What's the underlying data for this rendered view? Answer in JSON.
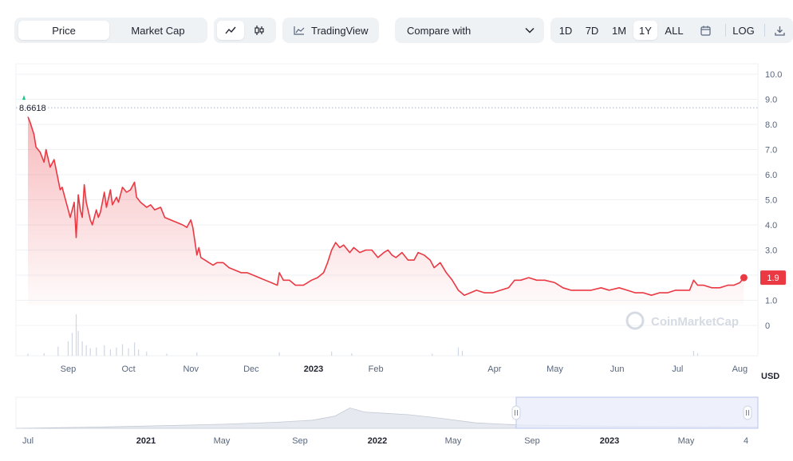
{
  "toolbar": {
    "tabs": [
      "Price",
      "Market Cap"
    ],
    "active_tab": "Price",
    "chart_icons": [
      "line-chart-icon",
      "candlestick-icon"
    ],
    "tradingview_label": "TradingView",
    "compare_label": "Compare with",
    "ranges": [
      "1D",
      "7D",
      "1M",
      "1Y",
      "ALL"
    ],
    "active_range": "1Y",
    "log_label": "LOG"
  },
  "currency_label": "USD",
  "watermark": "CoinMarketCap",
  "colors": {
    "line": "#ea3943",
    "fill_top": "#ea3943",
    "grid": "#eff2f5",
    "nav_selection": "#e8ecfb",
    "positive": "#16c784"
  },
  "chart_data": {
    "type": "area",
    "y_ticks": [
      "0",
      "1.0",
      "2.0",
      "3.0",
      "4.0",
      "5.0",
      "6.0",
      "7.0",
      "8.0",
      "9.0",
      "10.0"
    ],
    "ylim": [
      0,
      10.5
    ],
    "x_ticks": [
      "Sep",
      "Oct",
      "Nov",
      "Dec",
      "2023",
      "Feb",
      "Apr",
      "May",
      "Jun",
      "Jul",
      "Aug"
    ],
    "bold_x_ticks": [
      "2023"
    ],
    "x_tick_dates": [
      "2022-09-01",
      "2022-10-01",
      "2022-11-01",
      "2022-12-01",
      "2023-01-01",
      "2023-02-01",
      "2023-04-01",
      "2023-05-01",
      "2023-06-01",
      "2023-07-01",
      "2023-08-01"
    ],
    "high_label": "8.6618",
    "last_label": "1.9",
    "series": [
      {
        "points": [
          [
            "2022-08-12",
            8.3
          ],
          [
            "2022-08-13",
            8.1
          ],
          [
            "2022-08-15",
            7.6
          ],
          [
            "2022-08-16",
            7.1
          ],
          [
            "2022-08-18",
            6.9
          ],
          [
            "2022-08-20",
            6.5
          ],
          [
            "2022-08-21",
            7.0
          ],
          [
            "2022-08-23",
            6.3
          ],
          [
            "2022-08-25",
            6.6
          ],
          [
            "2022-08-27",
            5.8
          ],
          [
            "2022-08-28",
            5.4
          ],
          [
            "2022-08-29",
            5.5
          ],
          [
            "2022-09-01",
            4.6
          ],
          [
            "2022-09-02",
            4.3
          ],
          [
            "2022-09-04",
            4.9
          ],
          [
            "2022-09-05",
            3.5
          ],
          [
            "2022-09-06",
            5.2
          ],
          [
            "2022-09-07",
            4.6
          ],
          [
            "2022-09-08",
            4.3
          ],
          [
            "2022-09-09",
            5.6
          ],
          [
            "2022-09-10",
            4.9
          ],
          [
            "2022-09-12",
            4.2
          ],
          [
            "2022-09-13",
            4.0
          ],
          [
            "2022-09-15",
            4.6
          ],
          [
            "2022-09-16",
            4.3
          ],
          [
            "2022-09-17",
            4.5
          ],
          [
            "2022-09-19",
            5.3
          ],
          [
            "2022-09-20",
            4.7
          ],
          [
            "2022-09-22",
            5.4
          ],
          [
            "2022-09-23",
            4.8
          ],
          [
            "2022-09-25",
            5.1
          ],
          [
            "2022-09-26",
            4.9
          ],
          [
            "2022-09-28",
            5.5
          ],
          [
            "2022-09-30",
            5.3
          ],
          [
            "2022-10-02",
            5.4
          ],
          [
            "2022-10-04",
            5.7
          ],
          [
            "2022-10-05",
            5.1
          ],
          [
            "2022-10-07",
            4.9
          ],
          [
            "2022-10-10",
            4.7
          ],
          [
            "2022-10-12",
            4.8
          ],
          [
            "2022-10-14",
            4.6
          ],
          [
            "2022-10-17",
            4.7
          ],
          [
            "2022-10-19",
            4.3
          ],
          [
            "2022-10-22",
            4.2
          ],
          [
            "2022-10-25",
            4.1
          ],
          [
            "2022-10-28",
            4.0
          ],
          [
            "2022-10-30",
            3.9
          ],
          [
            "2022-11-01",
            4.2
          ],
          [
            "2022-11-02",
            3.9
          ],
          [
            "2022-11-04",
            2.8
          ],
          [
            "2022-11-05",
            3.1
          ],
          [
            "2022-11-06",
            2.7
          ],
          [
            "2022-11-08",
            2.6
          ],
          [
            "2022-11-10",
            2.5
          ],
          [
            "2022-11-12",
            2.4
          ],
          [
            "2022-11-14",
            2.5
          ],
          [
            "2022-11-17",
            2.5
          ],
          [
            "2022-11-20",
            2.3
          ],
          [
            "2022-11-23",
            2.2
          ],
          [
            "2022-11-26",
            2.1
          ],
          [
            "2022-11-29",
            2.1
          ],
          [
            "2022-12-02",
            2.0
          ],
          [
            "2022-12-05",
            1.9
          ],
          [
            "2022-12-08",
            1.8
          ],
          [
            "2022-12-11",
            1.7
          ],
          [
            "2022-12-14",
            1.6
          ],
          [
            "2022-12-15",
            2.1
          ],
          [
            "2022-12-17",
            1.8
          ],
          [
            "2022-12-20",
            1.8
          ],
          [
            "2022-12-23",
            1.6
          ],
          [
            "2022-12-27",
            1.6
          ],
          [
            "2022-12-31",
            1.8
          ],
          [
            "2023-01-03",
            1.9
          ],
          [
            "2023-01-06",
            2.1
          ],
          [
            "2023-01-08",
            2.5
          ],
          [
            "2023-01-10",
            3.0
          ],
          [
            "2023-01-12",
            3.3
          ],
          [
            "2023-01-14",
            3.1
          ],
          [
            "2023-01-16",
            3.2
          ],
          [
            "2023-01-19",
            2.9
          ],
          [
            "2023-01-21",
            3.1
          ],
          [
            "2023-01-24",
            2.9
          ],
          [
            "2023-01-27",
            3.0
          ],
          [
            "2023-01-30",
            3.0
          ],
          [
            "2023-02-02",
            2.7
          ],
          [
            "2023-02-05",
            2.9
          ],
          [
            "2023-02-07",
            3.0
          ],
          [
            "2023-02-09",
            2.8
          ],
          [
            "2023-02-11",
            2.7
          ],
          [
            "2023-02-14",
            2.9
          ],
          [
            "2023-02-17",
            2.6
          ],
          [
            "2023-02-20",
            2.6
          ],
          [
            "2023-02-22",
            2.9
          ],
          [
            "2023-02-25",
            2.8
          ],
          [
            "2023-02-28",
            2.6
          ],
          [
            "2023-03-02",
            2.3
          ],
          [
            "2023-03-05",
            2.5
          ],
          [
            "2023-03-08",
            2.1
          ],
          [
            "2023-03-11",
            1.8
          ],
          [
            "2023-03-14",
            1.4
          ],
          [
            "2023-03-17",
            1.2
          ],
          [
            "2023-03-20",
            1.3
          ],
          [
            "2023-03-23",
            1.4
          ],
          [
            "2023-03-27",
            1.3
          ],
          [
            "2023-03-31",
            1.3
          ],
          [
            "2023-04-04",
            1.4
          ],
          [
            "2023-04-08",
            1.5
          ],
          [
            "2023-04-11",
            1.8
          ],
          [
            "2023-04-14",
            1.8
          ],
          [
            "2023-04-18",
            1.9
          ],
          [
            "2023-04-22",
            1.8
          ],
          [
            "2023-04-26",
            1.8
          ],
          [
            "2023-05-01",
            1.7
          ],
          [
            "2023-05-05",
            1.5
          ],
          [
            "2023-05-09",
            1.4
          ],
          [
            "2023-05-14",
            1.4
          ],
          [
            "2023-05-19",
            1.4
          ],
          [
            "2023-05-24",
            1.5
          ],
          [
            "2023-05-28",
            1.4
          ],
          [
            "2023-06-02",
            1.5
          ],
          [
            "2023-06-06",
            1.4
          ],
          [
            "2023-06-10",
            1.3
          ],
          [
            "2023-06-14",
            1.3
          ],
          [
            "2023-06-18",
            1.2
          ],
          [
            "2023-06-22",
            1.3
          ],
          [
            "2023-06-26",
            1.3
          ],
          [
            "2023-06-30",
            1.4
          ],
          [
            "2023-07-04",
            1.4
          ],
          [
            "2023-07-07",
            1.4
          ],
          [
            "2023-07-09",
            1.8
          ],
          [
            "2023-07-11",
            1.6
          ],
          [
            "2023-07-14",
            1.6
          ],
          [
            "2023-07-18",
            1.5
          ],
          [
            "2023-07-22",
            1.5
          ],
          [
            "2023-07-26",
            1.6
          ],
          [
            "2023-07-29",
            1.6
          ],
          [
            "2023-08-01",
            1.7
          ],
          [
            "2023-08-03",
            1.9
          ]
        ]
      }
    ],
    "volume": [
      [
        "2022-08-12",
        0.05
      ],
      [
        "2022-08-20",
        0.06
      ],
      [
        "2022-08-27",
        0.22
      ],
      [
        "2022-09-01",
        0.35
      ],
      [
        "2022-09-03",
        0.55
      ],
      [
        "2022-09-05",
        1.0
      ],
      [
        "2022-09-06",
        0.6
      ],
      [
        "2022-09-08",
        0.35
      ],
      [
        "2022-09-10",
        0.25
      ],
      [
        "2022-09-12",
        0.18
      ],
      [
        "2022-09-15",
        0.2
      ],
      [
        "2022-09-19",
        0.25
      ],
      [
        "2022-09-22",
        0.15
      ],
      [
        "2022-09-25",
        0.2
      ],
      [
        "2022-09-28",
        0.28
      ],
      [
        "2022-10-01",
        0.18
      ],
      [
        "2022-10-04",
        0.32
      ],
      [
        "2022-10-06",
        0.15
      ],
      [
        "2022-10-10",
        0.1
      ],
      [
        "2022-10-20",
        0.05
      ],
      [
        "2022-11-04",
        0.08
      ],
      [
        "2022-12-15",
        0.08
      ],
      [
        "2023-01-10",
        0.1
      ],
      [
        "2023-01-20",
        0.06
      ],
      [
        "2023-03-01",
        0.05
      ],
      [
        "2023-03-14",
        0.2
      ],
      [
        "2023-03-16",
        0.12
      ],
      [
        "2023-07-09",
        0.12
      ],
      [
        "2023-07-11",
        0.06
      ]
    ]
  },
  "navigator": {
    "x_ticks": [
      "Jul",
      "2021",
      "May",
      "Sep",
      "2022",
      "May",
      "Sep",
      "2023",
      "May",
      "4"
    ],
    "bold_x_ticks": [
      "2021",
      "2022",
      "2023"
    ]
  }
}
